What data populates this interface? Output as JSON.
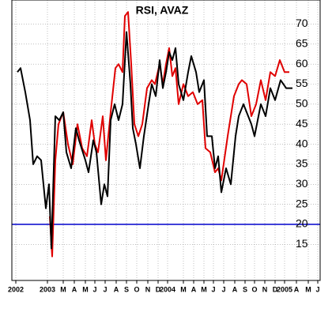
{
  "chart_data": {
    "type": "line",
    "title": "RSI, AVAZ",
    "xlim": [
      0,
      97.5
    ],
    "xticks": [
      {
        "value": 1.25,
        "label": "2002"
      },
      {
        "value": 11.25,
        "label": "2003"
      },
      {
        "value": 16.25,
        "label": "M"
      },
      {
        "value": 19.75,
        "label": "A"
      },
      {
        "value": 23.25,
        "label": "M"
      },
      {
        "value": 26.25,
        "label": "J"
      },
      {
        "value": 29.5,
        "label": "J"
      },
      {
        "value": 33,
        "label": "A"
      },
      {
        "value": 36.25,
        "label": "S"
      },
      {
        "value": 39.5,
        "label": "O"
      },
      {
        "value": 43,
        "label": "N"
      },
      {
        "value": 46.25,
        "label": "D"
      },
      {
        "value": 49.25,
        "label": "2004"
      },
      {
        "value": 54.25,
        "label": "M"
      },
      {
        "value": 57.5,
        "label": "A"
      },
      {
        "value": 60.75,
        "label": "M"
      },
      {
        "value": 63.75,
        "label": "J"
      },
      {
        "value": 67,
        "label": "J"
      },
      {
        "value": 70.5,
        "label": "A"
      },
      {
        "value": 73.75,
        "label": "S"
      },
      {
        "value": 76.75,
        "label": "O"
      },
      {
        "value": 80,
        "label": "N"
      },
      {
        "value": 83.25,
        "label": "D"
      },
      {
        "value": 86.25,
        "label": "2005"
      },
      {
        "value": 90,
        "label": "A"
      },
      {
        "value": 93.75,
        "label": "M"
      },
      {
        "value": 96.75,
        "label": "J"
      }
    ],
    "ylim": [
      6,
      76
    ],
    "yticks": [
      15,
      20,
      25,
      30,
      35,
      40,
      45,
      50,
      55,
      60,
      65,
      70
    ],
    "grid": true,
    "reference_line": {
      "value": 20,
      "color": "#0000cc"
    },
    "series": [
      {
        "color": "#e00000",
        "x": [
          12,
          12.75,
          13.75,
          14.75,
          16.25,
          17.75,
          19.25,
          20.75,
          22.25,
          23.75,
          25.25,
          26.25,
          27.25,
          28.75,
          29.75,
          31.25,
          32.75,
          33.75,
          35,
          35.75,
          36.75,
          37.75,
          38.75,
          40,
          41.25,
          42.75,
          44.25,
          45.25,
          46.75,
          47.75,
          48.75,
          49.75,
          50.75,
          51.75,
          52.75,
          54.25,
          55.75,
          57.25,
          58.75,
          60.25,
          61.25,
          62.75,
          64.25,
          65.25,
          66.25,
          68.25,
          70.25,
          71.75,
          72.75,
          74.25,
          75.75,
          77.25,
          78.75,
          80.25,
          81.75,
          83.25,
          84.75,
          86.25,
          87.75
        ],
        "values": [
          22,
          12,
          36,
          45,
          48,
          40,
          35,
          45,
          39,
          37,
          46,
          40,
          38,
          47,
          36,
          48,
          59,
          60,
          58,
          72,
          73,
          60,
          45,
          42,
          45,
          54,
          56,
          55,
          60,
          55,
          60,
          64,
          57,
          59,
          50,
          55,
          52,
          53,
          50,
          51,
          39,
          38,
          33,
          34,
          31,
          42,
          52,
          55,
          56,
          55,
          47,
          50,
          56,
          51,
          58,
          57,
          61,
          58,
          58
        ]
      },
      {
        "color": "#000000",
        "x": [
          1.75,
          2.75,
          4.25,
          5.75,
          6.75,
          8,
          9.25,
          10.75,
          11.75,
          12.5,
          13.75,
          15,
          16.25,
          17.25,
          18.75,
          20.25,
          21.25,
          23.25,
          24.25,
          25.75,
          26.75,
          28.25,
          29.25,
          30.25,
          31.25,
          32.5,
          33.75,
          35,
          36.25,
          37.5,
          38.25,
          39.25,
          40.5,
          41.75,
          43.25,
          44.25,
          45.5,
          46.75,
          47.75,
          48.75,
          49.75,
          50.75,
          51.75,
          52.75,
          54.25,
          55.75,
          56.75,
          58.25,
          59.25,
          60.75,
          61.75,
          63.25,
          64.25,
          65.25,
          66.25,
          67.75,
          69.25,
          70.75,
          71.75,
          73.25,
          74.25,
          75.75,
          76.75,
          78.75,
          80.25,
          81.75,
          83.25,
          85,
          86.75,
          88.75
        ],
        "values": [
          58,
          59,
          53,
          46,
          35,
          37,
          36,
          24,
          30,
          14,
          47,
          46,
          48,
          38,
          34,
          44,
          41,
          36,
          33,
          41,
          38,
          25,
          30,
          27,
          46,
          50,
          46,
          50,
          68,
          55,
          44,
          40,
          34,
          42,
          50,
          55,
          52,
          61,
          54,
          58,
          63,
          61,
          64,
          55,
          51,
          58,
          62,
          58,
          53,
          56,
          42,
          42,
          34,
          37,
          28,
          34,
          30,
          42,
          47,
          50,
          48,
          45,
          42,
          50,
          47,
          54,
          51,
          56,
          54,
          54
        ]
      }
    ]
  }
}
